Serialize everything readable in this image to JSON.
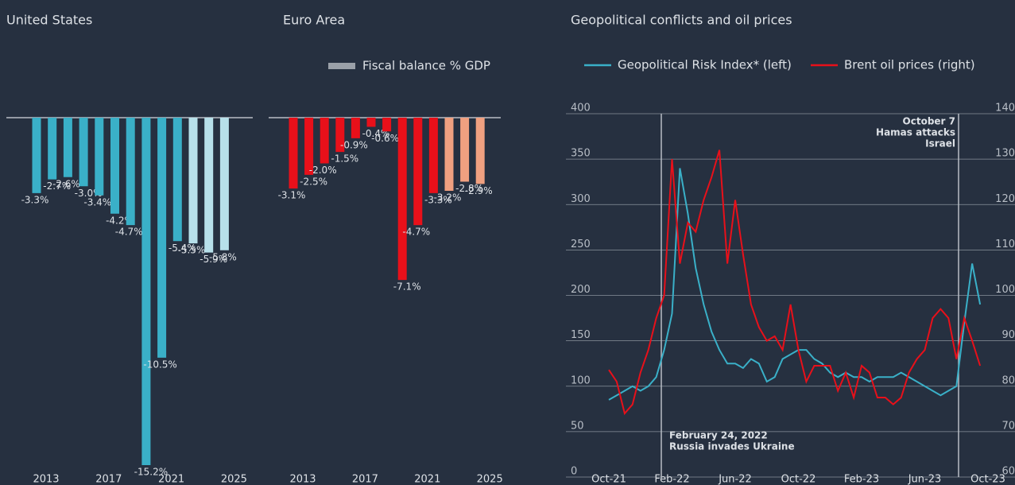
{
  "chart_data": [
    {
      "type": "bar",
      "title": "United States",
      "categories": [
        "2013",
        null,
        null,
        null,
        "2017",
        null,
        null,
        null,
        "2021",
        null,
        null,
        null,
        "2025"
      ],
      "series": [
        {
          "values": [
            -3.3,
            -2.7,
            -2.6,
            -3.0,
            -3.4,
            -4.2,
            -4.7,
            -15.2,
            -10.5,
            -5.4,
            -5.5,
            -5.9,
            -5.8
          ],
          "value_labels": [
            "-3.3%",
            "-2.7%",
            "-2.6%",
            "-3.0%",
            "-3.4%",
            "-4.2%",
            "-4.7%",
            "-15.2%",
            "-10.5%",
            "-5.4%",
            "-5.5%",
            "-5.9%",
            "-5.8%"
          ],
          "colors": [
            "#3ab0c8",
            "#3ab0c8",
            "#3ab0c8",
            "#3ab0c8",
            "#3ab0c8",
            "#3ab0c8",
            "#3ab0c8",
            "#3ab0c8",
            "#3ab0c8",
            "#3ab0c8",
            "#b7e0ea",
            "#b7e0ea",
            "#b7e0ea"
          ]
        }
      ]
    },
    {
      "type": "bar",
      "title": "Euro Area",
      "categories": [
        "2013",
        null,
        null,
        null,
        "2017",
        null,
        null,
        null,
        "2021",
        null,
        null,
        null,
        "2025"
      ],
      "legend_color": "#9aa0a8",
      "series": [
        {
          "name": "Fiscal balance % GDP",
          "values": [
            -3.1,
            -2.5,
            -2.0,
            -1.5,
            -0.9,
            -0.4,
            -0.6,
            -7.1,
            -4.7,
            -3.3,
            -3.2,
            -2.8,
            -2.9
          ],
          "value_labels": [
            "-3.1%",
            "-2.5%",
            "-2.0%",
            "-1.5%",
            "-0.9%",
            "-0.4%",
            "-0.6%",
            "-7.1%",
            "-4.7%",
            "-3.3%",
            "-3.2%",
            "-2.8%",
            "-2.9%"
          ],
          "colors": [
            "#e8101a",
            "#e8101a",
            "#e8101a",
            "#e8101a",
            "#e8101a",
            "#e8101a",
            "#e8101a",
            "#e8101a",
            "#e8101a",
            "#e8101a",
            "#f0a080",
            "#f0a080",
            "#f0a080"
          ]
        }
      ]
    },
    {
      "type": "line",
      "title": "Geopolitical conflicts and oil prices",
      "categories": [
        "Oct-21",
        null,
        null,
        null,
        null,
        null,
        null,
        null,
        "Feb-22",
        null,
        null,
        null,
        null,
        null,
        null,
        null,
        "Jun-22",
        null,
        null,
        null,
        null,
        null,
        null,
        null,
        "Oct-22",
        null,
        null,
        null,
        null,
        null,
        null,
        null,
        "Feb-23",
        null,
        null,
        null,
        null,
        null,
        null,
        null,
        "Jun-23",
        null,
        null,
        null,
        null,
        null,
        null,
        null,
        "Oct-23"
      ],
      "ylim": [
        0,
        400
      ],
      "yticks": [
        0,
        50,
        100,
        150,
        200,
        250,
        300,
        350,
        400
      ],
      "y2lim": [
        60,
        140
      ],
      "y2ticks": [
        60,
        70,
        80,
        90,
        100,
        110,
        120,
        130,
        140
      ],
      "grid": true,
      "series": [
        {
          "name": "Geopolitical Risk Index* (left)",
          "color": "#3ab0c8",
          "values": [
            85,
            90,
            95,
            100,
            95,
            100,
            110,
            140,
            180,
            340,
            290,
            230,
            190,
            160,
            140,
            125,
            125,
            120,
            130,
            125,
            105,
            110,
            130,
            135,
            140,
            140,
            130,
            125,
            115,
            110,
            115,
            110,
            110,
            105,
            110,
            110,
            110,
            115,
            110,
            105,
            100,
            95,
            90,
            95,
            100,
            170,
            235,
            190,
            null
          ]
        },
        {
          "name": "Brent oil prices (right)",
          "color": "#e8101a",
          "axis": "y2",
          "values": [
            83.6,
            81,
            74,
            76,
            83,
            88,
            95,
            100,
            130,
            107,
            116,
            114,
            121,
            126,
            132,
            107,
            121,
            109,
            98,
            93,
            90,
            91,
            88,
            98,
            88,
            81,
            84.5,
            84.5,
            84.5,
            79,
            83,
            77.5,
            84.5,
            83,
            77.5,
            77.5,
            76,
            77.5,
            83,
            86,
            88,
            95,
            97,
            95,
            86,
            95,
            90,
            84.5,
            null
          ]
        }
      ],
      "annotations": [
        {
          "lines": [
            "February 24, 2022",
            "Russia invades Ukraine"
          ]
        },
        {
          "lines": [
            "October 7",
            "Hamas attacks",
            "Israel"
          ]
        }
      ]
    }
  ]
}
